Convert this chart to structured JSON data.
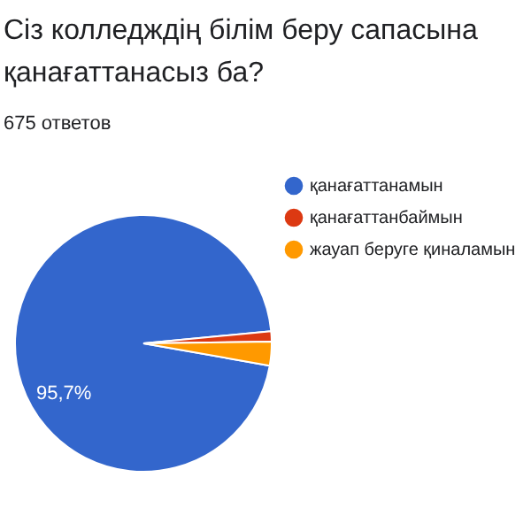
{
  "chart_data": {
    "type": "pie",
    "title": "Сіз колледждің білім беру сапасына қанағаттанасыз ба?",
    "subtitle": "675 ответов",
    "categories": [
      "қанағаттанамын",
      "қанағаттанбаймын",
      "жауап беруге қиналамын"
    ],
    "values": [
      95.7,
      1.3,
      3.0
    ],
    "value_labels": [
      "95,7%",
      null,
      null
    ],
    "colors": [
      "#3366cc",
      "#dc3912",
      "#ff9900"
    ],
    "legend": "right"
  }
}
